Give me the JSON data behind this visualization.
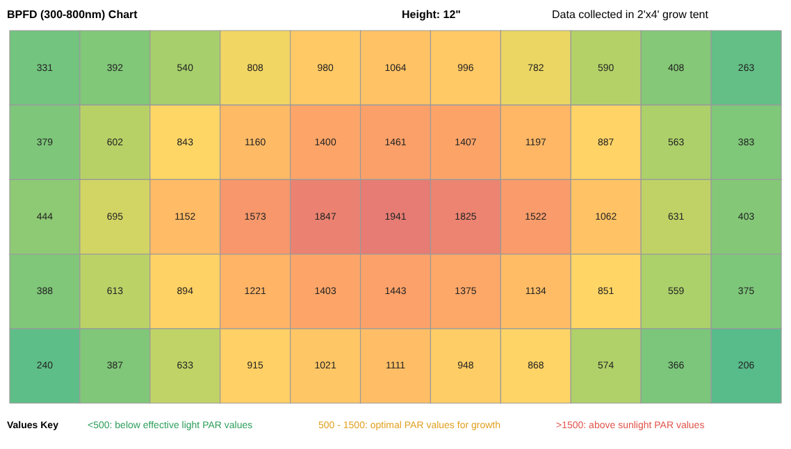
{
  "chart_data": {
    "type": "heatmap",
    "title": "BPFD (300-800nm) Chart",
    "subtitle": "Height: 12\"",
    "categories": [
      null,
      null,
      null,
      null,
      null,
      null,
      null,
      null,
      null,
      null,
      null
    ],
    "y_categories": [
      null,
      null,
      null,
      null,
      null
    ],
    "cells": [
      [
        331,
        392,
        540,
        808,
        980,
        1064,
        996,
        782,
        590,
        408,
        263
      ],
      [
        379,
        602,
        843,
        1160,
        1400,
        1461,
        1407,
        1197,
        887,
        563,
        383
      ],
      [
        444,
        695,
        1152,
        1573,
        1847,
        1941,
        1825,
        1522,
        1062,
        631,
        403
      ],
      [
        388,
        613,
        894,
        1221,
        1403,
        1443,
        1375,
        1134,
        851,
        559,
        375
      ],
      [
        240,
        387,
        633,
        915,
        1021,
        1111,
        948,
        868,
        574,
        366,
        206
      ]
    ],
    "data_labels": true,
    "tick_labels": false,
    "annotations": [
      "Data collected in 2'x4' grow tent",
      "Values Key",
      "<500: below effective light PAR values",
      "500 - 1500: optimal PAR values for growth",
      ">1500: above sunlight PAR values"
    ]
  }
}
